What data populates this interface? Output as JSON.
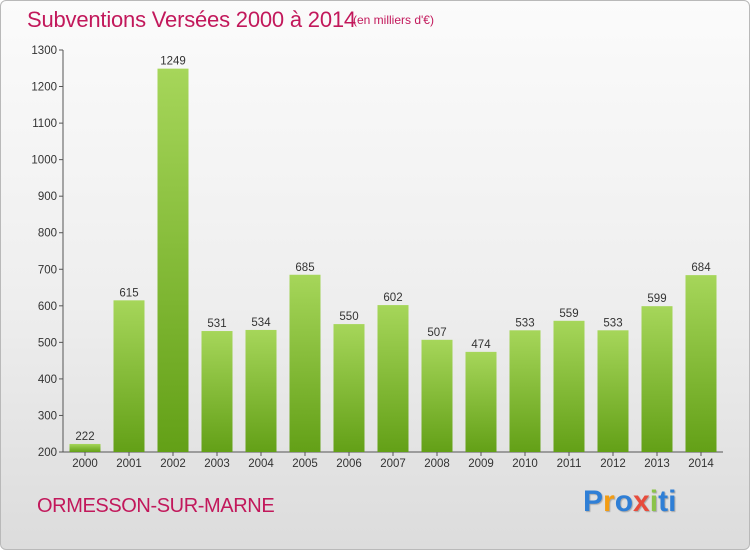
{
  "header": {
    "title": "Subventions Versées 2000 à 2014",
    "subtitle": "(en milliers d'€)"
  },
  "footer": {
    "city": "ORMESSON-SUR-MARNE",
    "logo_text": "Proxiti"
  },
  "colors": {
    "title": "#c2185b",
    "bar_top": "#a6d65a",
    "bar_bottom": "#63a017",
    "logo": [
      "#2f7fd6",
      "#f39c12",
      "#2f7fd6",
      "#e74c3c",
      "#8bc34a",
      "#2f7fd6"
    ]
  },
  "chart_data": {
    "type": "bar",
    "title": "Subventions Versées 2000 à 2014",
    "subtitle": "(en milliers d'€)",
    "categories": [
      "2000",
      "2001",
      "2002",
      "2003",
      "2004",
      "2005",
      "2006",
      "2007",
      "2008",
      "2009",
      "2010",
      "2011",
      "2012",
      "2013",
      "2014"
    ],
    "values": [
      222,
      615,
      1249,
      531,
      534,
      685,
      550,
      602,
      507,
      474,
      533,
      559,
      533,
      599,
      684
    ],
    "data_labels": [
      "222",
      "615",
      "1249",
      "531",
      "534",
      "685",
      "550",
      "602",
      "507",
      "474",
      "533",
      "559",
      "533",
      "599",
      "684"
    ],
    "ylim": [
      200,
      1300
    ],
    "yticks": [
      200,
      300,
      400,
      500,
      600,
      700,
      800,
      900,
      1000,
      1100,
      1200,
      1300
    ],
    "grid": false,
    "legend": "none"
  }
}
